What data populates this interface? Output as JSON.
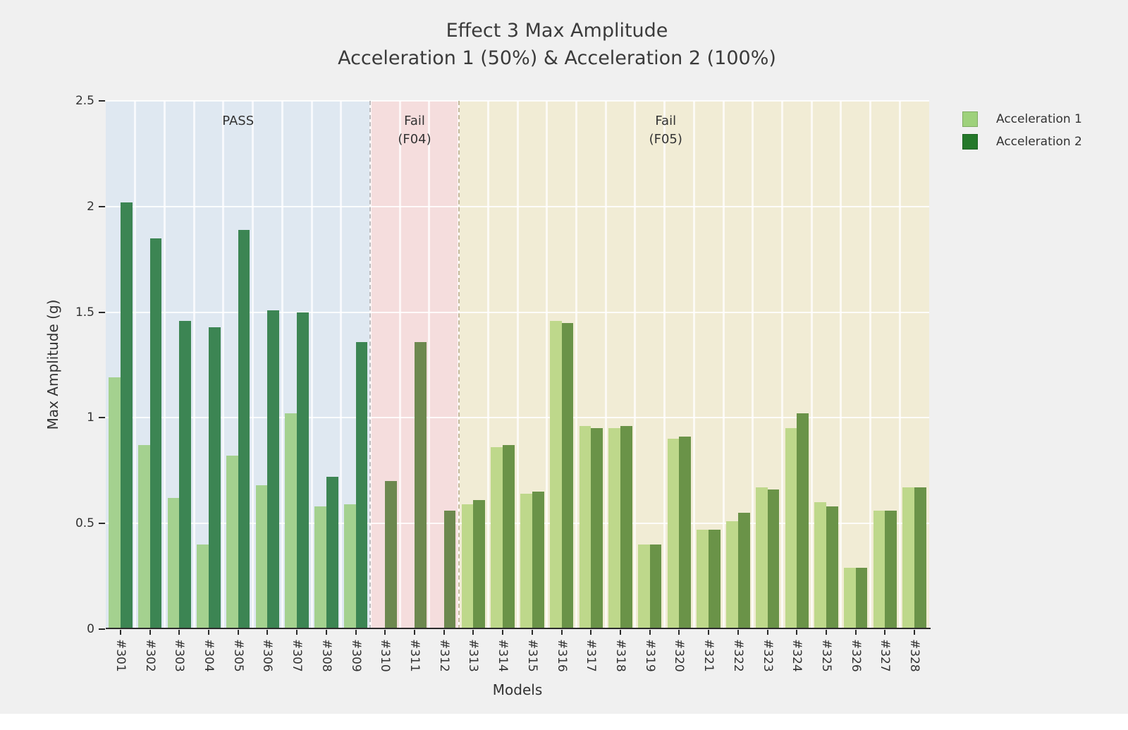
{
  "chart_data": {
    "type": "bar",
    "title_line1": "Effect 3 Max Amplitude",
    "title_line2": "Acceleration 1 (50%) & Acceleration 2 (100%)",
    "xlabel": "Models",
    "ylabel": "Max Amplitude (g)",
    "ylim": [
      0,
      2.5
    ],
    "ytick_values": [
      0,
      0.5,
      1,
      1.5,
      2,
      2.5
    ],
    "ytick_labels": [
      "0",
      "0.5",
      "1",
      "1.5",
      "2",
      "2.5"
    ],
    "gridline_values": [
      0.5,
      1,
      1.5,
      2,
      2.5
    ],
    "grid": "on",
    "legend_position": "top-right-outside",
    "categories": [
      "#301",
      "#302",
      "#303",
      "#304",
      "#305",
      "#306",
      "#307",
      "#308",
      "#309",
      "#310",
      "#311",
      "#312",
      "#313",
      "#314",
      "#315",
      "#316",
      "#317",
      "#318",
      "#319",
      "#320",
      "#321",
      "#322",
      "#323",
      "#324",
      "#325",
      "#326",
      "#327",
      "#328"
    ],
    "series": [
      {
        "name": "Acceleration 1",
        "key": "accel1",
        "legend_color": "#9ed17b",
        "values": [
          1.19,
          0.87,
          0.62,
          0.4,
          0.82,
          0.68,
          1.02,
          0.58,
          0.59,
          null,
          null,
          null,
          0.59,
          0.86,
          0.64,
          1.46,
          0.96,
          0.95,
          0.4,
          0.9,
          0.47,
          0.51,
          0.67,
          0.95,
          0.6,
          0.29,
          0.56,
          0.67
        ]
      },
      {
        "name": "Acceleration 2",
        "key": "accel2",
        "legend_color": "#24782a",
        "values": [
          2.02,
          1.85,
          1.46,
          1.43,
          1.89,
          1.51,
          1.5,
          0.72,
          1.36,
          0.7,
          1.36,
          0.56,
          0.61,
          0.87,
          0.65,
          1.45,
          0.95,
          0.96,
          0.4,
          0.91,
          0.47,
          0.55,
          0.66,
          1.02,
          0.58,
          0.29,
          0.56,
          0.67
        ]
      }
    ],
    "regions": [
      {
        "label_lines": [
          "PASS"
        ],
        "start_index": 0,
        "end_index": 9,
        "bg_color": "#dfe8f1",
        "bar_colors": {
          "accel1": "#a4d18f",
          "accel2": "#3c8553"
        },
        "divider_color": null,
        "label_center_frac": 0.5
      },
      {
        "label_lines": [
          "Fail",
          "(F04)"
        ],
        "start_index": 9,
        "end_index": 12,
        "bg_color": "#f5dddd",
        "bar_colors": {
          "accel1": "#bcc584",
          "accel2": "#6d884f"
        },
        "divider_color": "rgba(138,138,142,0.55)",
        "label_center_frac": 0.5
      },
      {
        "label_lines": [
          "Fail",
          "(F05)"
        ],
        "start_index": 12,
        "end_index": 28,
        "bg_color": "#f1ecd5",
        "bar_colors": {
          "accel1": "#bed88b",
          "accel2": "#6a9348"
        },
        "divider_color": "rgba(166,150,106,0.65)",
        "label_center_frac": 0.44
      }
    ]
  }
}
